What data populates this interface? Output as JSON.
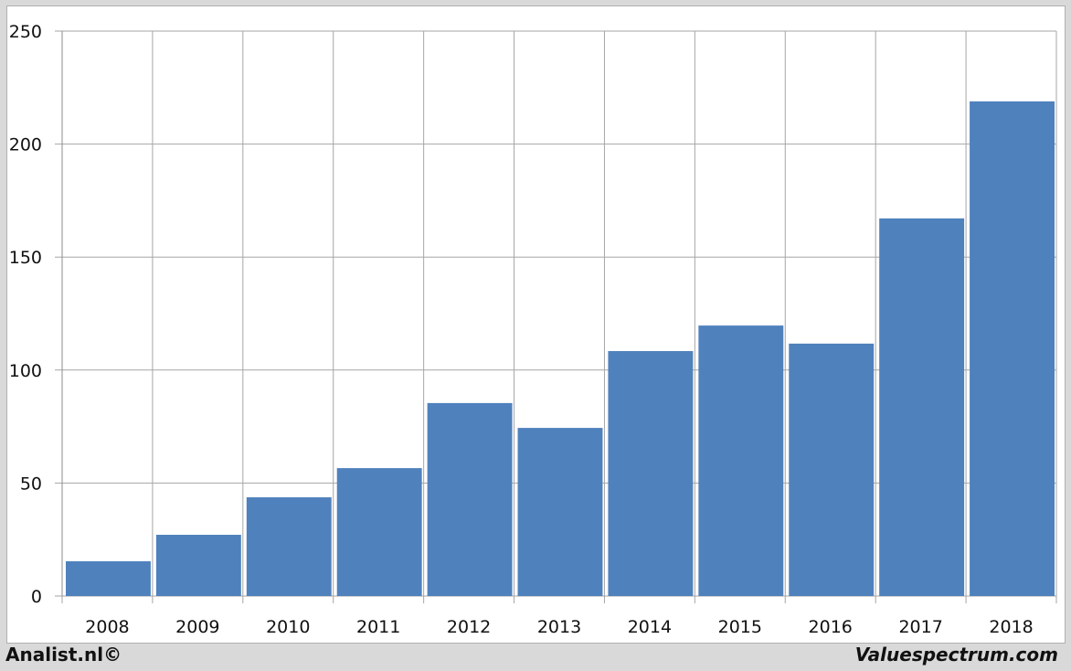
{
  "chart_data": {
    "type": "bar",
    "categories": [
      "2008",
      "2009",
      "2010",
      "2011",
      "2012",
      "2013",
      "2014",
      "2015",
      "2016",
      "2017",
      "2018"
    ],
    "values": [
      15.4,
      27.1,
      43.7,
      56.6,
      85.4,
      74.4,
      108.4,
      119.7,
      111.7,
      167.1,
      218.9
    ],
    "ylim": [
      0,
      250
    ],
    "yticks": [
      0,
      50,
      100,
      150,
      200,
      250
    ],
    "grid": true,
    "bar_color": "#4f81bd",
    "title": "",
    "xlabel": "",
    "ylabel": ""
  },
  "footer": {
    "left": "Analist.nl©",
    "right": "Valuespectrum.com"
  }
}
